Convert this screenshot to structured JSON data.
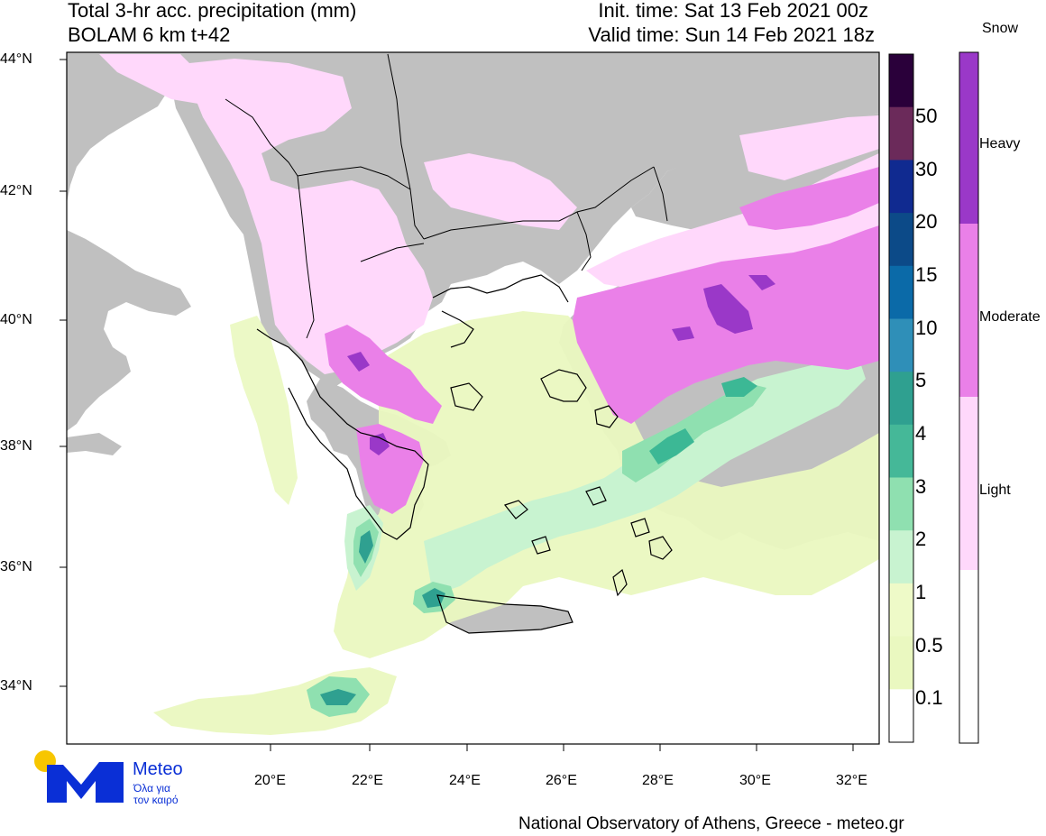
{
  "header": {
    "title_line1": "Total 3-hr acc. precipitation (mm)",
    "title_line2": "BOLAM 6 km t+42",
    "init_time": "Init. time: Sat 13 Feb 2021 00z",
    "valid_time": "Valid time: Sun 14 Feb 2021 18z"
  },
  "map": {
    "latitude_labels": [
      "44°N",
      "42°N",
      "40°N",
      "38°N",
      "36°N",
      "34°N"
    ],
    "longitude_labels": [
      "20°E",
      "22°E",
      "24°E",
      "26°E",
      "28°E",
      "30°E",
      "32°E"
    ],
    "colors": {
      "land": "#c0c0c0",
      "sea": "#ffffff",
      "rain_0_1": "#f0f8c8",
      "rain_1": "#d8f5c8",
      "rain_2": "#b0ecc0",
      "rain_3": "#78d8a8",
      "rain_4": "#3cb895",
      "snow_light": "#ffd8fb",
      "snow_moderate": "#eb80e8",
      "snow_heavy": "#9a38c8"
    }
  },
  "precip_colorbar": {
    "labels": [
      "50",
      "30",
      "20",
      "15",
      "10",
      "5",
      "4",
      "3",
      "2",
      "1",
      "0.5",
      "0.1"
    ],
    "colors": [
      "#2a003a",
      "#6b2a5a",
      "#102a90",
      "#0c4a88",
      "#0b6aa8",
      "#2f8fb8",
      "#2fa090",
      "#45b898",
      "#8fe0b0",
      "#c8f3d0",
      "#eefac8",
      "#eaf8c0",
      "#ffffff"
    ]
  },
  "snow_colorbar": {
    "title": "Snow",
    "labels": [
      "Heavy",
      "Moderate",
      "Light"
    ],
    "colors": [
      "#9a38c8",
      "#ea80e8",
      "#ffd8fb",
      "#ffffff"
    ]
  },
  "logo": {
    "brand": "Meteo",
    "tagline_line1": "Όλα για",
    "tagline_line2": "τον καιρό",
    "brand_color": "#0a2fd6",
    "sun_color": "#f7c600"
  },
  "credit": "National Observatory of Athens, Greece - meteo.gr"
}
